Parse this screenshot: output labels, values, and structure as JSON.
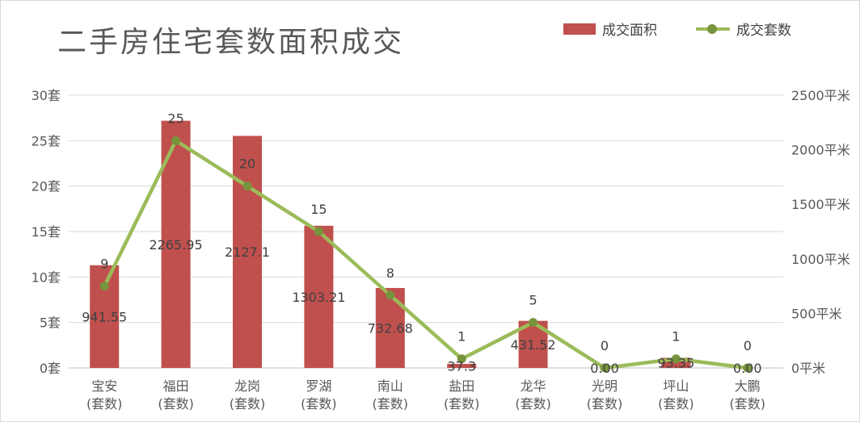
{
  "chart_data": {
    "type": "bar",
    "title": "二手房住宅套数面积成交",
    "categories": [
      [
        "宝安",
        "(套数)"
      ],
      [
        "福田",
        "(套数)"
      ],
      [
        "龙岗",
        "(套数)"
      ],
      [
        "罗湖",
        "(套数)"
      ],
      [
        "南山",
        "(套数)"
      ],
      [
        "盐田",
        "(套数)"
      ],
      [
        "龙华",
        "(套数)"
      ],
      [
        "光明",
        "(套数)"
      ],
      [
        "坪山",
        "(套数)"
      ],
      [
        "大鹏",
        "(套数)"
      ]
    ],
    "series": [
      {
        "name": "成交面积",
        "type": "bar",
        "axis": "right",
        "color": "#c0504d",
        "values": [
          941.55,
          2265.95,
          2127.1,
          1303.21,
          732.68,
          37.3,
          431.52,
          0.0,
          93.35,
          0.0
        ],
        "labels": [
          "941.55",
          "2265.95",
          "2127.1",
          "1303.21",
          "732.68",
          "37.3",
          "431.52",
          "0.00",
          "93.35",
          "0.00"
        ]
      },
      {
        "name": "成交套数",
        "type": "line",
        "axis": "left",
        "color": "#9bbb59",
        "marker_color": "#77933c",
        "values": [
          9,
          25,
          20,
          15,
          8,
          1,
          5,
          0,
          1,
          0
        ],
        "labels": [
          "9",
          "25",
          "20",
          "15",
          "8",
          "1",
          "5",
          "0",
          "1",
          "0"
        ]
      }
    ],
    "y_left": {
      "ylim": [
        0,
        30
      ],
      "ticks": [
        "0套",
        "5套",
        "10套",
        "15套",
        "20套",
        "25套",
        "30套"
      ]
    },
    "y_right": {
      "ylim": [
        0,
        2500
      ],
      "ticks": [
        "0平米",
        "500平米",
        "1000平米",
        "1500平米",
        "2000平米",
        "2500平米"
      ]
    },
    "grid": true,
    "legend_position": "top-right"
  }
}
